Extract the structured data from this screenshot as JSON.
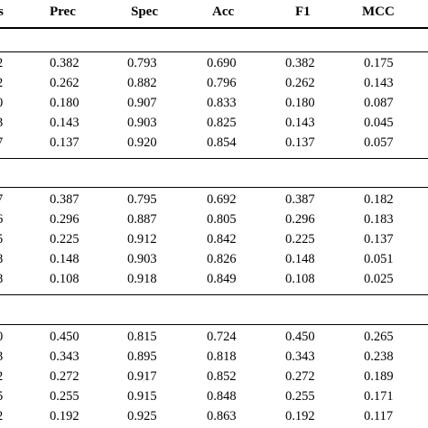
{
  "table": {
    "headers": [
      "s",
      "Prec",
      "Spec",
      "Acc",
      "F1",
      "MCC"
    ],
    "groups": [
      {
        "rows": [
          [
            "2",
            "0.382",
            "0.793",
            "0.690",
            "0.382",
            "0.175"
          ],
          [
            "2",
            "0.262",
            "0.882",
            "0.796",
            "0.262",
            "0.143"
          ],
          [
            "0",
            "0.180",
            "0.907",
            "0.833",
            "0.180",
            "0.087"
          ],
          [
            "3",
            "0.143",
            "0.903",
            "0.825",
            "0.143",
            "0.045"
          ],
          [
            "7",
            "0.137",
            "0.920",
            "0.854",
            "0.137",
            "0.057"
          ]
        ]
      },
      {
        "rows": [
          [
            "7",
            "0.387",
            "0.795",
            "0.692",
            "0.387",
            "0.182"
          ],
          [
            "6",
            "0.296",
            "0.887",
            "0.805",
            "0.296",
            "0.183"
          ],
          [
            "5",
            "0.225",
            "0.912",
            "0.842",
            "0.225",
            "0.137"
          ],
          [
            "8",
            "0.148",
            "0.903",
            "0.826",
            "0.148",
            "0.051"
          ],
          [
            "8",
            "0.108",
            "0.918",
            "0.849",
            "0.108",
            "0.025"
          ]
        ]
      },
      {
        "rows": [
          [
            "0",
            "0.450",
            "0.815",
            "0.724",
            "0.450",
            "0.265"
          ],
          [
            "3",
            "0.343",
            "0.895",
            "0.818",
            "0.343",
            "0.238"
          ],
          [
            "2",
            "0.272",
            "0.917",
            "0.852",
            "0.272",
            "0.189"
          ],
          [
            "5",
            "0.255",
            "0.915",
            "0.848",
            "0.255",
            "0.171"
          ],
          [
            "2",
            "0.192",
            "0.925",
            "0.863",
            "0.192",
            "0.117"
          ]
        ]
      }
    ]
  }
}
